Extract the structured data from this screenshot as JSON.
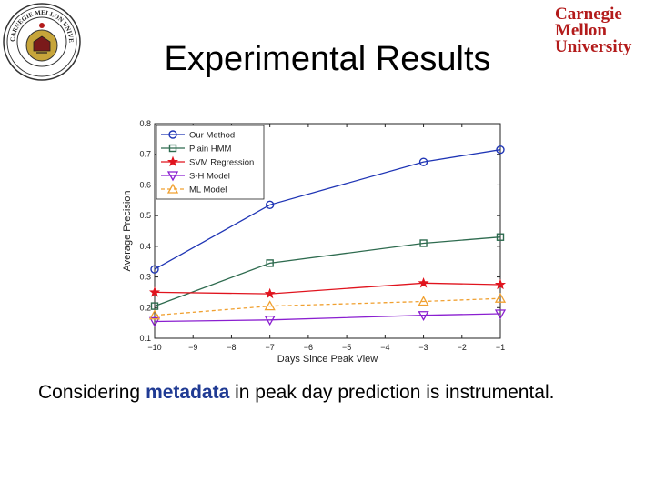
{
  "slide": {
    "title": "Experimental Results",
    "caption_pre": "Considering",
    "caption_highlight": "metadata",
    "caption_post": " in peak day prediction is instrumental."
  },
  "logo": {
    "line1": "Carnegie",
    "line2": "Mellon",
    "line3": "University",
    "color": "#b31b1b",
    "seal_text": "CARNEGIE MELLON UNIVERSITY"
  },
  "chart_data": {
    "type": "line",
    "xlabel": "Days Since Peak View",
    "ylabel": "Average Precision",
    "xlim": [
      -10,
      -1
    ],
    "ylim": [
      0.1,
      0.8
    ],
    "xticks": [
      -10,
      -9,
      -8,
      -7,
      -6,
      -5,
      -4,
      -3,
      -2,
      -1
    ],
    "yticks": [
      0.1,
      0.2,
      0.3,
      0.4,
      0.5,
      0.6,
      0.7,
      0.8
    ],
    "grid": false,
    "legend_position": "top-left",
    "x": [
      -10,
      -7,
      -3,
      -1
    ],
    "series": [
      {
        "name": "Our Method",
        "values": [
          0.325,
          0.535,
          0.675,
          0.715
        ],
        "color": "#1f35b5",
        "marker": "circle",
        "dash": "solid"
      },
      {
        "name": "Plain HMM",
        "values": [
          0.205,
          0.345,
          0.41,
          0.43
        ],
        "color": "#2e6b4f",
        "marker": "square",
        "dash": "solid"
      },
      {
        "name": "SVM Regression",
        "values": [
          0.25,
          0.245,
          0.28,
          0.275
        ],
        "color": "#e0141e",
        "marker": "star",
        "dash": "solid"
      },
      {
        "name": "S-H Model",
        "values": [
          0.155,
          0.16,
          0.175,
          0.18
        ],
        "color": "#8a1fd0",
        "marker": "triangle-down",
        "dash": "solid"
      },
      {
        "name": "ML Model",
        "values": [
          0.175,
          0.205,
          0.22,
          0.23
        ],
        "color": "#f0a030",
        "marker": "triangle-up",
        "dash": "dashed"
      }
    ]
  }
}
